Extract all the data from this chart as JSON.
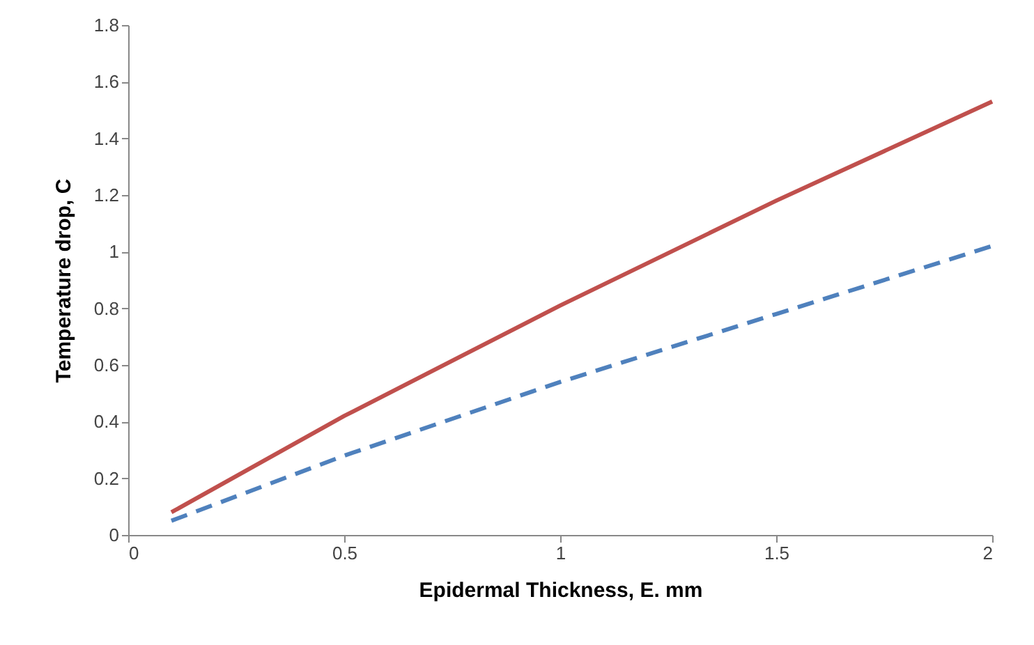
{
  "chart_data": {
    "type": "line",
    "xlabel": "Epidermal Thickness, E. mm",
    "ylabel": "Temperature drop, C",
    "xlim": [
      0,
      2
    ],
    "xticks": [
      0,
      0.5,
      1,
      1.5,
      2
    ],
    "ylim": [
      0,
      1.8
    ],
    "yticks": [
      0,
      0.2,
      0.4,
      0.6,
      0.8,
      1,
      1.2,
      1.4,
      1.6,
      1.8
    ],
    "x": [
      0.1,
      0.5,
      1,
      1.5,
      2
    ],
    "series": [
      {
        "color": "#c0504d",
        "line_style": "solid",
        "values": [
          0.08,
          0.42,
          0.81,
          1.18,
          1.53
        ]
      },
      {
        "color": "#4f81bd",
        "line_style": "dashed",
        "values": [
          0.05,
          0.28,
          0.54,
          0.78,
          1.02
        ]
      }
    ]
  }
}
